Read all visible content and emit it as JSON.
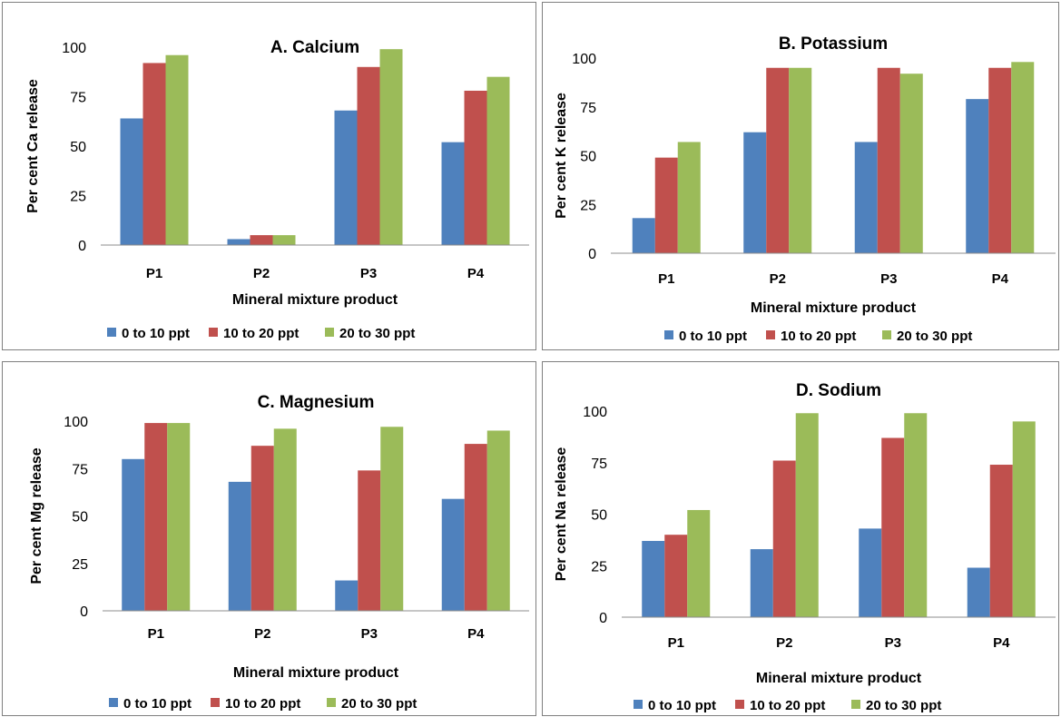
{
  "chart_data": [
    {
      "type": "bar",
      "title": "A. Calcium",
      "xlabel": "Mineral mixture product",
      "ylabel": "Per cent  Ca release",
      "categories": [
        "P1",
        "P2",
        "P3",
        "P4"
      ],
      "ylim": [
        0,
        100
      ],
      "yticks": [
        "0",
        "25",
        "50",
        "75",
        "100"
      ],
      "legend_position": "bottom",
      "grid": false,
      "series": [
        {
          "name": "0 to 10 ppt",
          "color": "#4f81bd",
          "values": [
            64,
            3,
            68,
            52
          ]
        },
        {
          "name": "10 to 20 ppt",
          "color": "#c0504d",
          "values": [
            92,
            5,
            90,
            78
          ]
        },
        {
          "name": "20 to 30 ppt",
          "color": "#9bbb59",
          "values": [
            96,
            5,
            99,
            85
          ]
        }
      ]
    },
    {
      "type": "bar",
      "title": "B. Potassium",
      "xlabel": "Mineral mixture product",
      "ylabel": "Per cent  K release",
      "categories": [
        "P1",
        "P2",
        "P3",
        "P4"
      ],
      "ylim": [
        0,
        100
      ],
      "yticks": [
        "0",
        "25",
        "50",
        "75",
        "100"
      ],
      "legend_position": "bottom",
      "grid": false,
      "series": [
        {
          "name": "0 to 10 ppt",
          "color": "#4f81bd",
          "values": [
            18,
            62,
            57,
            79
          ]
        },
        {
          "name": "10 to 20 ppt",
          "color": "#c0504d",
          "values": [
            49,
            95,
            95,
            95
          ]
        },
        {
          "name": "20 to 30 ppt",
          "color": "#9bbb59",
          "values": [
            57,
            95,
            92,
            98
          ]
        }
      ]
    },
    {
      "type": "bar",
      "title": "C. Magnesium",
      "xlabel": "Mineral mixture product",
      "ylabel": "Per cent  Mg release",
      "categories": [
        "P1",
        "P2",
        "P3",
        "P4"
      ],
      "ylim": [
        0,
        100
      ],
      "yticks": [
        "0",
        "25",
        "50",
        "75",
        "100"
      ],
      "legend_position": "bottom",
      "grid": false,
      "series": [
        {
          "name": "0 to 10 ppt",
          "color": "#4f81bd",
          "values": [
            80,
            68,
            16,
            59
          ]
        },
        {
          "name": "10 to 20 ppt",
          "color": "#c0504d",
          "values": [
            99,
            87,
            74,
            88
          ]
        },
        {
          "name": "20 to 30 ppt",
          "color": "#9bbb59",
          "values": [
            99,
            96,
            97,
            95
          ]
        }
      ]
    },
    {
      "type": "bar",
      "title": "D. Sodium",
      "xlabel": "Mineral mixture product",
      "ylabel": "Per cent  Na release",
      "categories": [
        "P1",
        "P2",
        "P3",
        "P4"
      ],
      "ylim": [
        0,
        100
      ],
      "yticks": [
        "0",
        "25",
        "50",
        "75",
        "100"
      ],
      "legend_position": "bottom",
      "grid": false,
      "series": [
        {
          "name": "0 to 10 ppt",
          "color": "#4f81bd",
          "values": [
            37,
            33,
            43,
            24
          ]
        },
        {
          "name": "10 to 20 ppt",
          "color": "#c0504d",
          "values": [
            40,
            76,
            87,
            74
          ]
        },
        {
          "name": "20 to 30 ppt",
          "color": "#9bbb59",
          "values": [
            52,
            99,
            99,
            95
          ]
        }
      ]
    }
  ]
}
